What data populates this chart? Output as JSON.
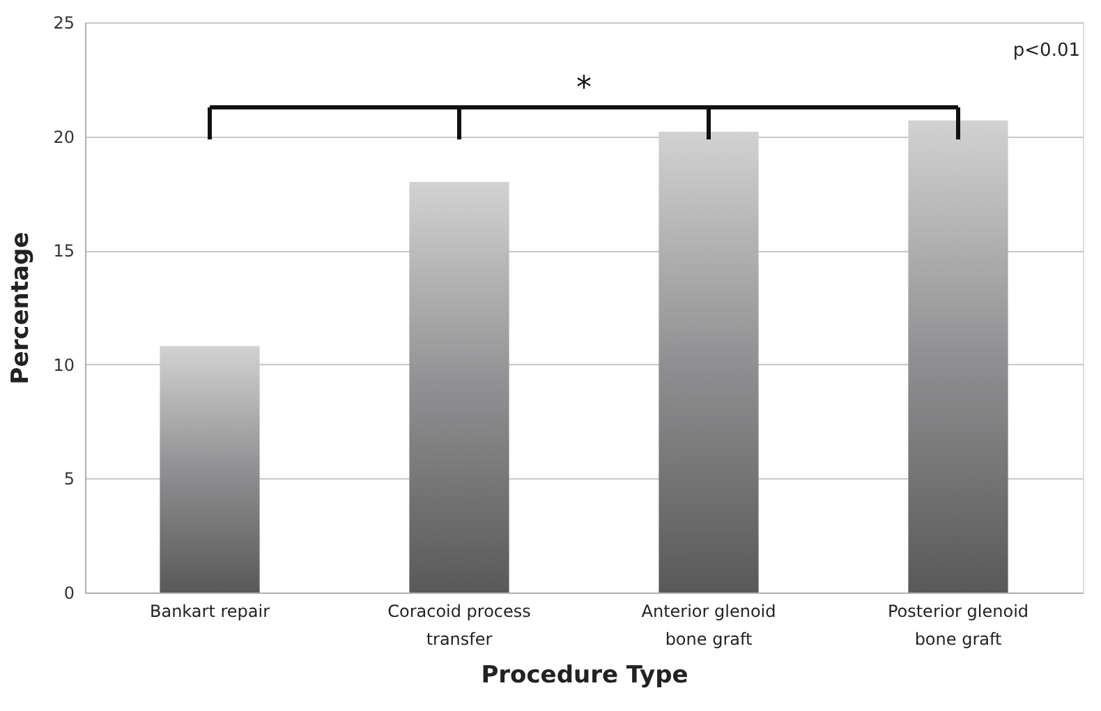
{
  "chart_data": {
    "type": "bar",
    "xlabel": "Procedure Type",
    "ylabel": "Percentage",
    "categories": [
      "Bankart repair",
      "Coracoid process transfer",
      "Anterior glenoid bone graft",
      "Posterior glenoid bone graft"
    ],
    "values": [
      10.8,
      18.0,
      20.2,
      20.7
    ],
    "color": "#909092",
    "ylim": [
      0,
      25
    ],
    "yticks": [
      0,
      5,
      10,
      15,
      20,
      25
    ],
    "grid": "y",
    "annotations": [
      "*",
      "p<0.01"
    ]
  }
}
